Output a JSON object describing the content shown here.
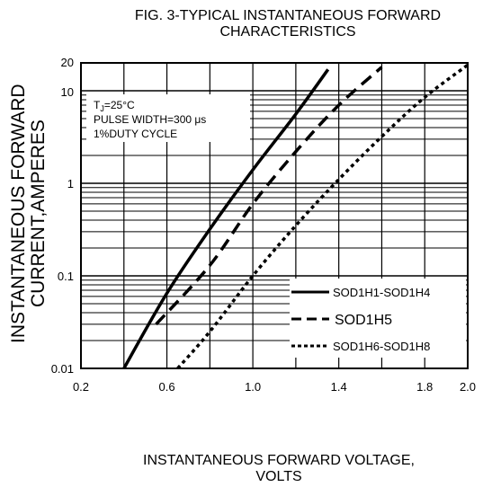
{
  "chart_data": {
    "type": "line",
    "title": "FIG. 3-TYPICAL INSTANTANEOUS FORWARD CHARACTERISTICS",
    "title_lines": [
      "FIG. 3-TYPICAL INSTANTANEOUS FORWARD",
      "CHARACTERISTICS"
    ],
    "xlabel": "INSTANTANEOUS FORWARD VOLTAGE, VOLTS",
    "xlabel_lines": [
      "INSTANTANEOUS FORWARD VOLTAGE,",
      "VOLTS"
    ],
    "ylabel": "INSTANTANEOUS FORWARD CURRENT,AMPERES",
    "ylabel_lines": [
      "INSTANTANEOUS FORWARD",
      "CURRENT,AMPERES"
    ],
    "xlim": [
      0.2,
      2.0
    ],
    "ylim": [
      0.01,
      20
    ],
    "yscale": "log",
    "grid": true,
    "x_ticks": [
      {
        "value": 0.2,
        "label": "0.2"
      },
      {
        "value": 0.6,
        "label": "0.6"
      },
      {
        "value": 1.0,
        "label": "1.0"
      },
      {
        "value": 1.4,
        "label": "1.4"
      },
      {
        "value": 1.8,
        "label": "1.8"
      },
      {
        "value": 2.0,
        "label": "2.0"
      }
    ],
    "y_ticks": [
      {
        "value": 0.01,
        "label": "0.01"
      },
      {
        "value": 0.1,
        "label": "0.1"
      },
      {
        "value": 1,
        "label": "1"
      },
      {
        "value": 10,
        "label": "10"
      },
      {
        "value": 20,
        "label": "20"
      }
    ],
    "conditions": [
      "TJ=25°C",
      "PULSE WIDTH=300 μs",
      "1%DUTY CYCLE"
    ],
    "conditions_markup": [
      {
        "text": "T",
        "sub": "J",
        "rest": "=25°C"
      },
      {
        "text": "PULSE WIDTH=300 μs"
      },
      {
        "text": "1%DUTY CYCLE"
      }
    ],
    "legend_position": "bottom-right",
    "series": [
      {
        "name": "SOD1H1-SOD1H4",
        "style": "solid",
        "x": [
          0.4,
          0.6,
          0.8,
          1.0,
          1.2,
          1.35
        ],
        "y": [
          0.01,
          0.065,
          0.32,
          1.4,
          5.6,
          17
        ]
      },
      {
        "name": "SOD1H5",
        "style": "dashed",
        "x": [
          0.55,
          0.8,
          1.0,
          1.2,
          1.4,
          1.6
        ],
        "y": [
          0.03,
          0.13,
          0.6,
          2.2,
          7,
          18
        ]
      },
      {
        "name": "SOD1H6-SOD1H8",
        "style": "dotted",
        "x": [
          0.65,
          0.8,
          1.0,
          1.2,
          1.4,
          1.6,
          1.8,
          2.0
        ],
        "y": [
          0.01,
          0.025,
          0.1,
          0.35,
          1.1,
          3.2,
          8.5,
          19
        ]
      }
    ]
  }
}
